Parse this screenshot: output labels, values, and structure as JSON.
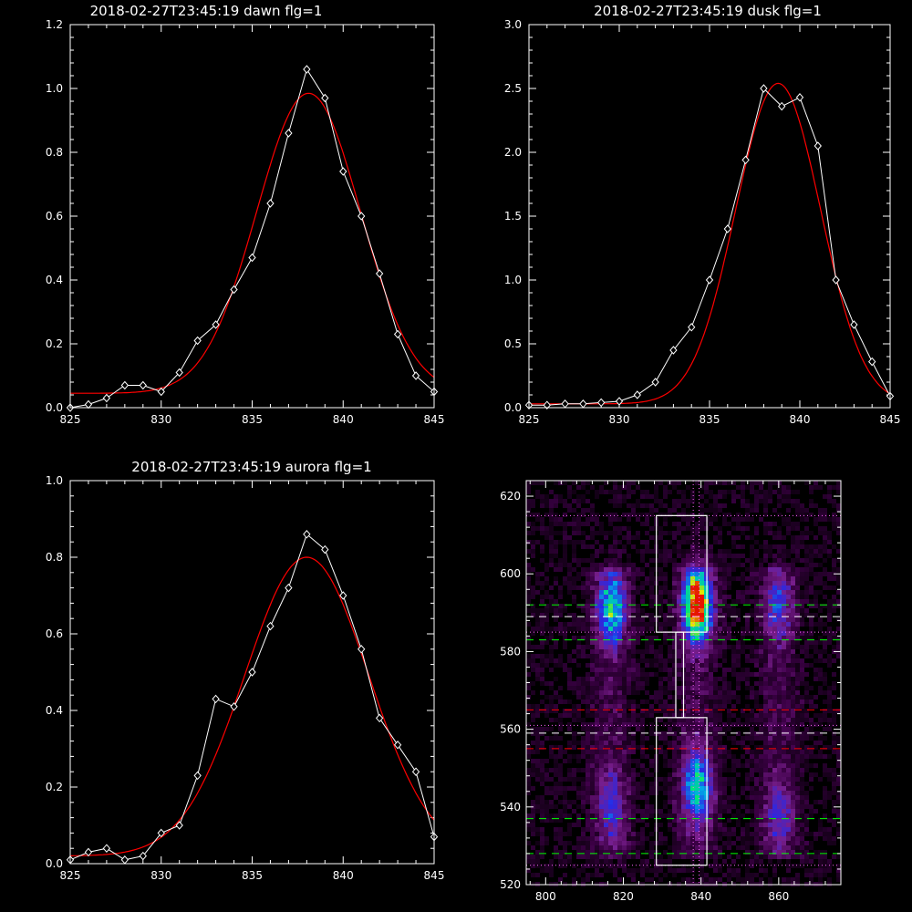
{
  "chart_data": [
    {
      "type": "line",
      "title": "2018-02-27T23:45:19 dawn flg=1",
      "xlim": [
        825,
        845
      ],
      "ylim": [
        0,
        1.2
      ],
      "xticks": [
        "825",
        "830",
        "835",
        "840",
        "845"
      ],
      "yticks": [
        "0.0",
        "0.2",
        "0.4",
        "0.6",
        "0.8",
        "1.0",
        "1.2"
      ],
      "series": [
        {
          "color": "#ffffff",
          "marker": "diamond",
          "x": [
            825,
            826,
            827,
            828,
            829,
            830,
            831,
            832,
            833,
            834,
            835,
            836,
            837,
            838,
            839,
            840,
            841,
            842,
            843,
            844,
            845
          ],
          "y": [
            0.0,
            0.01,
            0.03,
            0.07,
            0.07,
            0.05,
            0.11,
            0.21,
            0.26,
            0.37,
            0.47,
            0.64,
            0.86,
            1.06,
            0.97,
            0.74,
            0.6,
            0.42,
            0.23,
            0.1,
            0.05
          ]
        },
        {
          "color": "#ff0000",
          "fit": {
            "amp": 0.94,
            "mu": 838.1,
            "sigma": 2.85,
            "base": 0.045
          }
        }
      ]
    },
    {
      "type": "line",
      "title": "2018-02-27T23:45:19 dusk flg=1",
      "xlim": [
        825,
        845
      ],
      "ylim": [
        0,
        3.0
      ],
      "xticks": [
        "825",
        "830",
        "835",
        "840",
        "845"
      ],
      "yticks": [
        "0.0",
        "0.5",
        "1.0",
        "1.5",
        "2.0",
        "2.5",
        "3.0"
      ],
      "series": [
        {
          "color": "#ffffff",
          "marker": "diamond",
          "x": [
            825,
            826,
            827,
            828,
            829,
            830,
            831,
            832,
            833,
            834,
            835,
            836,
            837,
            838,
            839,
            840,
            841,
            842,
            843,
            844,
            845
          ],
          "y": [
            0.02,
            0.02,
            0.03,
            0.03,
            0.04,
            0.05,
            0.1,
            0.2,
            0.45,
            0.63,
            1.0,
            1.4,
            1.94,
            2.5,
            2.36,
            2.43,
            2.05,
            1.0,
            0.65,
            0.36,
            0.09
          ]
        },
        {
          "color": "#ff0000",
          "fit": {
            "amp": 2.51,
            "mu": 838.8,
            "sigma": 2.35,
            "base": 0.03
          }
        }
      ]
    },
    {
      "type": "line",
      "title": "2018-02-27T23:45:19 aurora flg=1",
      "xlim": [
        825,
        845
      ],
      "ylim": [
        0,
        1.0
      ],
      "xticks": [
        "825",
        "830",
        "835",
        "840",
        "845"
      ],
      "yticks": [
        "0.0",
        "0.2",
        "0.4",
        "0.6",
        "0.8",
        "1.0"
      ],
      "series": [
        {
          "color": "#ffffff",
          "marker": "diamond",
          "x": [
            825,
            826,
            827,
            828,
            829,
            830,
            831,
            832,
            833,
            834,
            835,
            836,
            837,
            838,
            839,
            840,
            841,
            842,
            843,
            844,
            845
          ],
          "y": [
            0.01,
            0.03,
            0.04,
            0.01,
            0.02,
            0.08,
            0.1,
            0.23,
            0.43,
            0.41,
            0.5,
            0.62,
            0.72,
            0.86,
            0.82,
            0.7,
            0.56,
            0.38,
            0.31,
            0.24,
            0.07
          ]
        },
        {
          "color": "#ff0000",
          "fit": {
            "amp": 0.78,
            "mu": 838.0,
            "sigma": 3.4,
            "base": 0.02
          }
        }
      ]
    },
    {
      "type": "heatmap",
      "title": "",
      "xlim": [
        795,
        876
      ],
      "ylim": [
        520,
        624
      ],
      "xticks": [
        "800",
        "820",
        "840",
        "860"
      ],
      "yticks": [
        "520",
        "540",
        "560",
        "580",
        "600",
        "620"
      ],
      "blobs": [
        {
          "x": 817,
          "y": 591,
          "intensity": 0.55
        },
        {
          "x": 839,
          "y": 592,
          "intensity": 1.0
        },
        {
          "x": 860,
          "y": 592,
          "intensity": 0.3
        },
        {
          "x": 817,
          "y": 540,
          "intensity": 0.3
        },
        {
          "x": 839,
          "y": 545,
          "intensity": 0.55
        },
        {
          "x": 860,
          "y": 538,
          "intensity": 0.25
        }
      ],
      "boxes": [
        {
          "x0": 828.5,
          "x1": 841.5,
          "y0": 585,
          "y1": 615,
          "color": "#ffffff"
        },
        {
          "x0": 828.5,
          "x1": 841.5,
          "y0": 525,
          "y1": 563,
          "color": "#ffffff"
        }
      ],
      "connector_x": [
        833.5,
        835.5
      ],
      "connector_y": [
        563,
        585
      ],
      "vertical_dotted_x": [
        838,
        839.5
      ],
      "lines": [
        {
          "y": 615,
          "color": "#ff66ff",
          "style": "dotted"
        },
        {
          "y": 592,
          "color": "#00ff00",
          "style": "dashed"
        },
        {
          "y": 589,
          "color": "#ffffff",
          "style": "dashed"
        },
        {
          "y": 585,
          "color": "#ff66ff",
          "style": "dotted"
        },
        {
          "y": 583,
          "color": "#00ff00",
          "style": "dashed"
        },
        {
          "y": 565,
          "color": "#ff0000",
          "style": "dashed"
        },
        {
          "y": 561,
          "color": "#ff66ff",
          "style": "dotted"
        },
        {
          "y": 559,
          "color": "#ffffff",
          "style": "dashed"
        },
        {
          "y": 555,
          "color": "#ff0000",
          "style": "dashed"
        },
        {
          "y": 537,
          "color": "#00ff00",
          "style": "dashed"
        },
        {
          "y": 528,
          "color": "#00ff00",
          "style": "dashed"
        },
        {
          "y": 525,
          "color": "#ff66ff",
          "style": "dotted"
        }
      ]
    }
  ]
}
